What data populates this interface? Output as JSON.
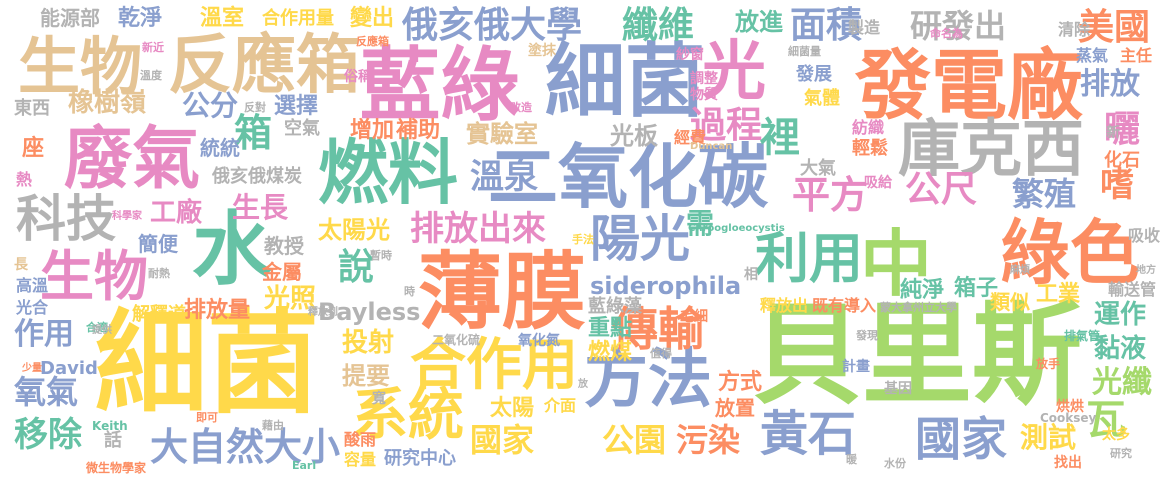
{
  "words": [
    {
      "text": "貝里斯",
      "color": "#a5d96b"
    },
    {
      "text": "細菌",
      "color": "#ffd94a"
    },
    {
      "text": "細菌",
      "color": "#8a9fce"
    },
    {
      "text": "藍綠",
      "color": "#e78ac3"
    },
    {
      "text": "光",
      "color": "#e78ac3"
    },
    {
      "text": "發電廠",
      "color": "#fc8d62"
    },
    {
      "text": "反應箱",
      "color": "#e5c494"
    },
    {
      "text": "生物",
      "color": "#e5c494"
    },
    {
      "text": "廢氣",
      "color": "#e78ac3"
    },
    {
      "text": "燃料",
      "color": "#66c2a5"
    },
    {
      "text": "二氧化碳",
      "color": "#8a9fce"
    },
    {
      "text": "庫克西",
      "color": "#b3b3b3"
    },
    {
      "text": "薄膜",
      "color": "#fc8d62"
    },
    {
      "text": "中",
      "color": "#a5d96b"
    },
    {
      "text": "水",
      "color": "#66c2a5"
    },
    {
      "text": "綠色",
      "color": "#fc8d62"
    },
    {
      "text": "方法",
      "color": "#8a9fce"
    },
    {
      "text": "合作用",
      "color": "#ffd94a"
    },
    {
      "text": "系統",
      "color": "#ffd94a"
    },
    {
      "text": "利用",
      "color": "#66c2a5"
    },
    {
      "text": "陽光",
      "color": "#8a9fce"
    },
    {
      "text": "科技",
      "color": "#b3b3b3"
    },
    {
      "text": "生物",
      "color": "#e78ac3"
    },
    {
      "text": "黃石",
      "color": "#8a9fce"
    },
    {
      "text": "國家",
      "color": "#8a9fce"
    },
    {
      "text": "傳輸",
      "color": "#fc8d62"
    },
    {
      "text": "大自然大小",
      "color": "#8a9fce"
    },
    {
      "text": "瓦",
      "color": "#a5d96b"
    },
    {
      "text": "俄亥俄大學",
      "color": "#8a9fce"
    },
    {
      "text": "纖維",
      "color": "#66c2a5"
    },
    {
      "text": "面積",
      "color": "#8a9fce"
    },
    {
      "text": "研發出",
      "color": "#b3b3b3"
    },
    {
      "text": "美國",
      "color": "#fc8d62"
    },
    {
      "text": "箱",
      "color": "#66c2a5"
    },
    {
      "text": "公分",
      "color": "#8a9fce"
    },
    {
      "text": "過程",
      "color": "#e78ac3"
    },
    {
      "text": "裡",
      "color": "#66c2a5"
    },
    {
      "text": "排放",
      "color": "#8a9fce"
    },
    {
      "text": "溫泉",
      "color": "#8a9fce"
    },
    {
      "text": "平方",
      "color": "#e78ac3"
    },
    {
      "text": "公尺",
      "color": "#e78ac3"
    },
    {
      "text": "繁殖",
      "color": "#8a9fce"
    },
    {
      "text": "曬",
      "color": "#e78ac3"
    },
    {
      "text": "嗜",
      "color": "#fc8d62"
    },
    {
      "text": "排放出來",
      "color": "#e78ac3"
    },
    {
      "text": "說",
      "color": "#66c2a5"
    },
    {
      "text": "工廠",
      "color": "#e78ac3"
    },
    {
      "text": "生長",
      "color": "#e78ac3"
    },
    {
      "text": "siderophila",
      "color": "#8a9fce"
    },
    {
      "text": "國家",
      "color": "#ffd94a"
    },
    {
      "text": "公園",
      "color": "#ffd94a"
    },
    {
      "text": "污染",
      "color": "#fc8d62"
    },
    {
      "text": "測試",
      "color": "#ffd94a"
    },
    {
      "text": "光纖",
      "color": "#a5d96b"
    },
    {
      "text": "移除",
      "color": "#66c2a5"
    },
    {
      "text": "氧氣",
      "color": "#8a9fce"
    },
    {
      "text": "作用",
      "color": "#8a9fce"
    },
    {
      "text": "太陽光",
      "color": "#ffd94a"
    },
    {
      "text": "光照",
      "color": "#ffd94a"
    },
    {
      "text": "Bayless",
      "color": "#b3b3b3"
    },
    {
      "text": "投射",
      "color": "#ffd94a"
    },
    {
      "text": "提要",
      "color": "#e5c494"
    },
    {
      "text": "運作",
      "color": "#66c2a5"
    },
    {
      "text": "黏液",
      "color": "#66c2a5"
    },
    {
      "text": "橡樹嶺",
      "color": "#e5c494"
    },
    {
      "text": "實驗室",
      "color": "#e5c494"
    },
    {
      "text": "光板",
      "color": "#b3b3b3"
    },
    {
      "text": "選擇",
      "color": "#8a9fce"
    },
    {
      "text": "增加",
      "color": "#fc8d62"
    },
    {
      "text": "補助",
      "color": "#fc8d62"
    },
    {
      "text": "需",
      "color": "#66c2a5"
    },
    {
      "text": "能源部",
      "color": "#b3b3b3"
    },
    {
      "text": "乾淨",
      "color": "#8a9fce"
    },
    {
      "text": "溫室",
      "color": "#ffd94a"
    },
    {
      "text": "合作用量",
      "color": "#ffd94a"
    },
    {
      "text": "變出",
      "color": "#ffd94a"
    },
    {
      "text": "放進",
      "color": "#66c2a5"
    },
    {
      "text": "太陽",
      "color": "#ffd94a"
    },
    {
      "text": "重點",
      "color": "#66c2a5"
    },
    {
      "text": "燃煤",
      "color": "#ffd94a"
    },
    {
      "text": "藍綠藻",
      "color": "#b3b3b3"
    },
    {
      "text": "方式",
      "color": "#fc8d62"
    },
    {
      "text": "放置",
      "color": "#fc8d62"
    },
    {
      "text": "工業",
      "color": "#ffd94a"
    },
    {
      "text": "箱子",
      "color": "#66c2a5"
    },
    {
      "text": "純淨",
      "color": "#66c2a5"
    },
    {
      "text": "類似",
      "color": "#ffd94a"
    },
    {
      "text": "釋放出",
      "color": "#ffd94a"
    },
    {
      "text": "既有",
      "color": "#fc8d62"
    },
    {
      "text": "導入",
      "color": "#fc8d62"
    },
    {
      "text": "排放量",
      "color": "#fc8d62"
    },
    {
      "text": "解釋道",
      "color": "#ffd94a"
    },
    {
      "text": "金屬",
      "color": "#fc8d62"
    },
    {
      "text": "教授",
      "color": "#b3b3b3"
    },
    {
      "text": "簡便",
      "color": "#8a9fce"
    },
    {
      "text": "空氣",
      "color": "#b3b3b3"
    },
    {
      "text": "統統",
      "color": "#8a9fce"
    },
    {
      "text": "座",
      "color": "#fc8d62"
    },
    {
      "text": "化石",
      "color": "#fc8d62"
    },
    {
      "text": "大氣",
      "color": "#b3b3b3"
    },
    {
      "text": "輕鬆",
      "color": "#fc8d62"
    },
    {
      "text": "紡織",
      "color": "#e78ac3"
    },
    {
      "text": "氣體",
      "color": "#ffd94a"
    },
    {
      "text": "發展",
      "color": "#8a9fce"
    },
    {
      "text": "經費",
      "color": "#fc8d62"
    },
    {
      "text": "蒸氣",
      "color": "#8a9fce"
    },
    {
      "text": "主任",
      "color": "#fc8d62"
    },
    {
      "text": "清除",
      "color": "#b3b3b3"
    },
    {
      "text": "製造",
      "color": "#b3b3b3"
    },
    {
      "text": "東西",
      "color": "#b3b3b3"
    },
    {
      "text": "俄亥俄煤炭",
      "color": "#b3b3b3"
    },
    {
      "text": "高溫",
      "color": "#8a9fce"
    },
    {
      "text": "光合",
      "color": "#8a9fce"
    },
    {
      "text": "輸送管",
      "color": "#b3b3b3"
    },
    {
      "text": "吸收",
      "color": "#b3b3b3"
    },
    {
      "text": "David",
      "color": "#8a9fce"
    },
    {
      "text": "話",
      "color": "#b3b3b3"
    },
    {
      "text": "寬",
      "color": "#b3b3b3"
    },
    {
      "text": "研究中心",
      "color": "#8a9fce"
    },
    {
      "text": "容量",
      "color": "#ffd94a"
    },
    {
      "text": "酸雨",
      "color": "#fc8d62"
    },
    {
      "text": "介面",
      "color": "#ffd94a"
    },
    {
      "text": "氧化氮",
      "color": "#8a9fce"
    },
    {
      "text": "二氧化硫",
      "color": "#b3b3b3"
    },
    {
      "text": "蒙大拿州立大學",
      "color": "#b3b3b3"
    },
    {
      "text": "計畫",
      "color": "#8a9fce"
    },
    {
      "text": "基因",
      "color": "#b3b3b3"
    },
    {
      "text": "烘烘",
      "color": "#fc8d62"
    },
    {
      "text": "Cooksey",
      "color": "#b3b3b3"
    },
    {
      "text": "找出",
      "color": "#fc8d62"
    },
    {
      "text": "太多",
      "color": "#ffd94a"
    },
    {
      "text": "熱",
      "color": "#e78ac3"
    },
    {
      "text": "長",
      "color": "#e5c494"
    },
    {
      "text": "塗抹",
      "color": "#e5c494"
    },
    {
      "text": "紗窗",
      "color": "#e78ac3"
    },
    {
      "text": "調整",
      "color": "#e78ac3"
    },
    {
      "text": "物質",
      "color": "#e78ac3"
    },
    {
      "text": "俗稱",
      "color": "#e78ac3"
    },
    {
      "text": "反對",
      "color": "#b3b3b3"
    },
    {
      "text": "溫度",
      "color": "#b3b3b3"
    },
    {
      "text": "新近",
      "color": "#e78ac3"
    },
    {
      "text": "毛細",
      "color": "#fc8d62"
    },
    {
      "text": "相",
      "color": "#b3b3b3"
    },
    {
      "text": "吸給",
      "color": "#e78ac3"
    },
    {
      "text": "新",
      "color": "#b3b3b3"
    },
    {
      "text": "排氣管",
      "color": "#66c2a5"
    },
    {
      "text": "放手",
      "color": "#fc8d62"
    },
    {
      "text": "發現",
      "color": "#b3b3b3"
    },
    {
      "text": "值得",
      "color": "#b3b3b3"
    },
    {
      "text": "微生物學家",
      "color": "#fc8d62"
    },
    {
      "text": "Keith",
      "color": "#66c2a5"
    },
    {
      "text": "合適",
      "color": "#66c2a5"
    },
    {
      "text": "耐熱",
      "color": "#b3b3b3"
    },
    {
      "text": "即可",
      "color": "#fc8d62"
    },
    {
      "text": "藉由",
      "color": "#b3b3b3"
    },
    {
      "text": "改造",
      "color": "#e78ac3"
    },
    {
      "text": "暖",
      "color": "#b3b3b3"
    },
    {
      "text": "Earl",
      "color": "#66c2a5"
    },
    {
      "text": "研究",
      "color": "#b3b3b3"
    },
    {
      "text": "水份",
      "color": "#b3b3b3"
    },
    {
      "text": "命名為",
      "color": "#e78ac3"
    },
    {
      "text": "細菌量",
      "color": "#b3b3b3"
    },
    {
      "text": "Duncan",
      "color": "#e5c494"
    },
    {
      "text": "Chroogloeocystis",
      "color": "#66c2a5"
    },
    {
      "text": "手法",
      "color": "#ffd94a"
    },
    {
      "text": "反應箱",
      "color": "#fc8d62"
    },
    {
      "text": "暫時",
      "color": "#b3b3b3"
    },
    {
      "text": "釋放到",
      "color": "#b3b3b3"
    },
    {
      "text": "時",
      "color": "#b3b3b3"
    },
    {
      "text": "放",
      "color": "#b3b3b3"
    },
    {
      "text": "科學家",
      "color": "#e78ac3"
    },
    {
      "text": "地方",
      "color": "#b3b3b3"
    },
    {
      "text": "麻煩",
      "color": "#b3b3b3"
    },
    {
      "text": "少量",
      "color": "#fc8d62"
    },
    {
      "text": "提供",
      "color": "#b3b3b3"
    }
  ]
}
